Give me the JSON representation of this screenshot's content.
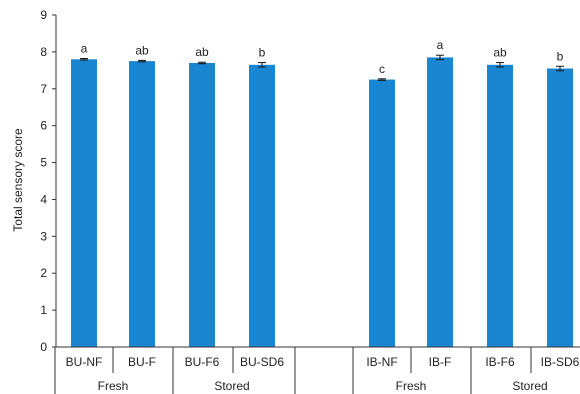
{
  "chart_data": {
    "type": "bar",
    "title": "",
    "xlabel": "",
    "ylabel": "Total sensory score",
    "ylim": [
      0,
      9
    ],
    "yticks": [
      0,
      1,
      2,
      3,
      4,
      5,
      6,
      7,
      8,
      9
    ],
    "grid": false,
    "legend": "none",
    "bar_color": "#1a86d1",
    "bars": [
      {
        "category": "BU-NF",
        "value": 7.8,
        "error": 0.02,
        "significance": "a"
      },
      {
        "category": "BU-F",
        "value": 7.75,
        "error": 0.02,
        "significance": "ab"
      },
      {
        "category": "BU-F6",
        "value": 7.7,
        "error": 0.02,
        "significance": "ab"
      },
      {
        "category": "BU-SD6",
        "value": 7.65,
        "error": 0.06,
        "significance": "b"
      },
      {
        "category": "IB-NF",
        "value": 7.25,
        "error": 0.02,
        "significance": "c"
      },
      {
        "category": "IB-F",
        "value": 7.85,
        "error": 0.06,
        "significance": "a"
      },
      {
        "category": "IB-F6",
        "value": 7.65,
        "error": 0.06,
        "significance": "ab"
      },
      {
        "category": "IB-SD6",
        "value": 7.55,
        "error": 0.06,
        "significance": "b"
      }
    ],
    "groups": [
      {
        "label": "Fresh",
        "categories": [
          "BU-NF",
          "BU-F"
        ]
      },
      {
        "label": "Stored",
        "categories": [
          "BU-F6",
          "BU-SD6"
        ]
      },
      {
        "label": "Fresh",
        "categories": [
          "IB-NF",
          "IB-F"
        ]
      },
      {
        "label": "Stored",
        "categories": [
          "IB-F6",
          "IB-SD6"
        ]
      }
    ]
  }
}
